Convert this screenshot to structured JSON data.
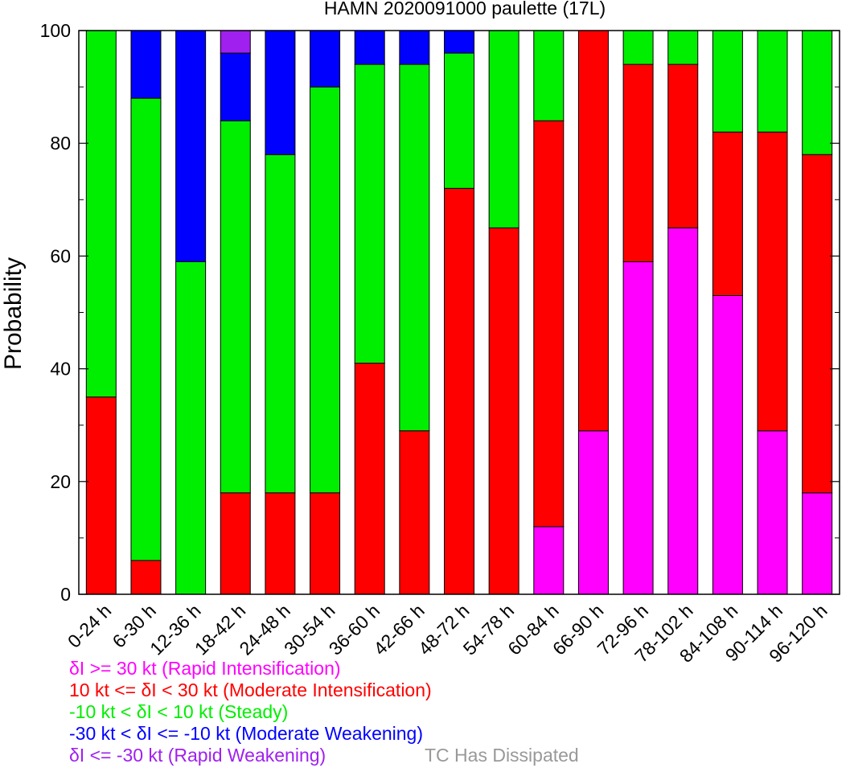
{
  "chart_data": {
    "type": "bar",
    "stacked": true,
    "title": "HAMN 2020091000 paulette (17L)",
    "xlabel": "",
    "ylabel": "Probability",
    "ylim": [
      0,
      100
    ],
    "yticks": [
      0,
      20,
      40,
      60,
      80,
      100
    ],
    "grid": false,
    "categories": [
      "0-24 h",
      "6-30 h",
      "12-36 h",
      "18-42 h",
      "24-48 h",
      "30-54 h",
      "36-60 h",
      "42-66 h",
      "48-72 h",
      "54-78 h",
      "60-84 h",
      "66-90 h",
      "72-96 h",
      "78-102 h",
      "84-108 h",
      "90-114 h",
      "96-120 h"
    ],
    "series": [
      {
        "name": "δI >= 30 kt (Rapid Intensification)",
        "color": "#ff00ff",
        "values": [
          0,
          0,
          0,
          0,
          0,
          0,
          0,
          0,
          0,
          0,
          12,
          29,
          59,
          65,
          53,
          29,
          18
        ]
      },
      {
        "name": "10 kt <= δI < 30 kt (Moderate Intensification)",
        "color": "#ff0000",
        "values": [
          35,
          6,
          0,
          18,
          18,
          18,
          41,
          29,
          72,
          65,
          72,
          71,
          35,
          29,
          29,
          53,
          60
        ]
      },
      {
        "name": "-10 kt < δI < 10 kt (Steady)",
        "color": "#00ee00",
        "values": [
          65,
          82,
          59,
          66,
          60,
          72,
          53,
          65,
          24,
          35,
          16,
          0,
          6,
          6,
          18,
          18,
          22
        ]
      },
      {
        "name": "-30 kt < δI <= -10 kt (Moderate Weakening)",
        "color": "#0000ff",
        "values": [
          0,
          12,
          41,
          12,
          22,
          10,
          6,
          6,
          4,
          0,
          0,
          0,
          0,
          0,
          0,
          0,
          0
        ]
      },
      {
        "name": "δI <= -30 kt (Rapid Weakening)",
        "color": "#a020f0",
        "values": [
          0,
          0,
          0,
          4,
          0,
          0,
          0,
          0,
          0,
          0,
          0,
          0,
          0,
          0,
          0,
          0,
          0
        ]
      }
    ],
    "extra_legend": {
      "name": "TC Has Dissipated",
      "color": "#999999"
    },
    "legend_position": "bottom-left"
  }
}
